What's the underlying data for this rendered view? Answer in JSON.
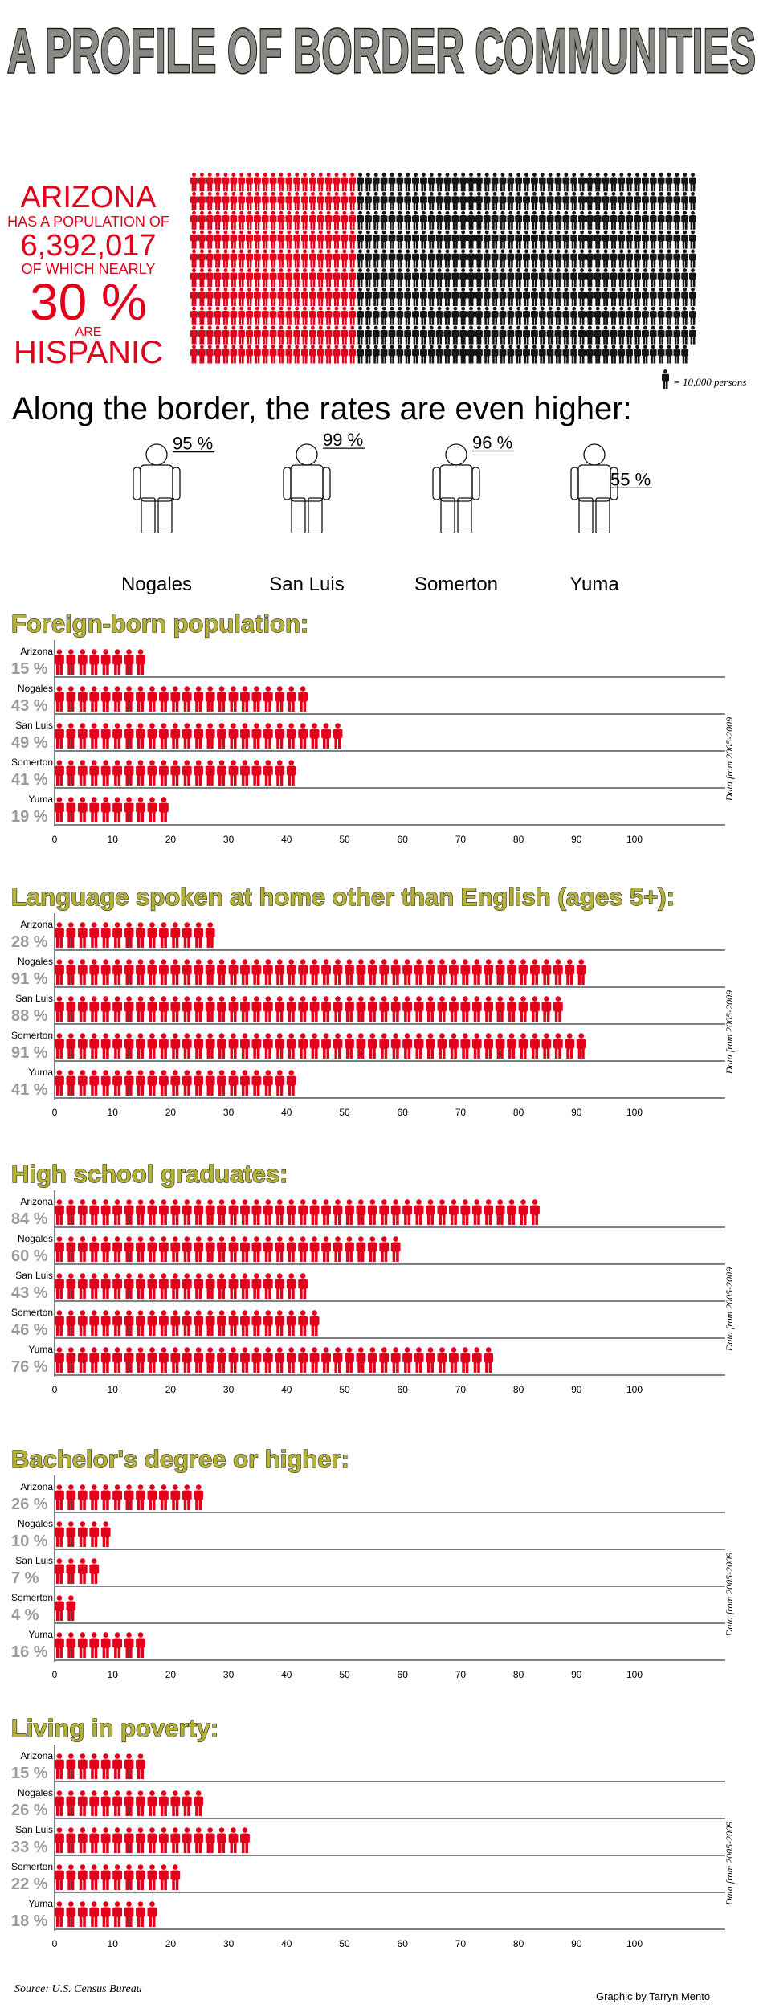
{
  "header": {
    "title": "A PROFILE OF BORDER COMMUNITIES"
  },
  "arizona": {
    "line1": "ARIZONA",
    "line2": "HAS A POPULATION OF",
    "line3": "6,392,017",
    "line4": "OF WHICH NEARLY",
    "line5": "30 %",
    "line6": "ARE",
    "line7": "HISPANIC",
    "population": 6392017,
    "hispanic_share": 0.3,
    "legend": "= 10,000 persons"
  },
  "border": {
    "heading": "Along the border, the rates are even higher:",
    "cities": [
      {
        "name": "Nogales",
        "pct_label": "95 %",
        "value": 95
      },
      {
        "name": "San Luis",
        "pct_label": "99 %",
        "value": 99
      },
      {
        "name": "Somerton",
        "pct_label": "96 %",
        "value": 96
      },
      {
        "name": "Yuma",
        "pct_label": "55 %",
        "value": 55
      }
    ]
  },
  "side_note": "Data from 2005-2009",
  "colors": {
    "accent": "#e3001b",
    "dark": "#141414",
    "title_fill": "#8a8a84",
    "heading_olive": "#b5b235",
    "pct_gray": "#9a9a9a"
  },
  "chart_data": [
    {
      "type": "bar",
      "title": "Foreign-born population:",
      "categories": [
        "Arizona",
        "Nogales",
        "San Luis",
        "Somerton",
        "Yuma"
      ],
      "values": [
        15,
        43,
        49,
        41,
        19
      ],
      "value_labels": [
        "15 %",
        "43 %",
        "49 %",
        "41 %",
        "19 %"
      ],
      "xlim": [
        0,
        100
      ],
      "ticks": [
        "0",
        "10",
        "20",
        "30",
        "40",
        "50",
        "60",
        "70",
        "80",
        "90",
        "100"
      ]
    },
    {
      "type": "bar",
      "title": "Language spoken at home other than English (ages 5+):",
      "categories": [
        "Arizona",
        "Nogales",
        "San Luis",
        "Somerton",
        "Yuma"
      ],
      "values": [
        28,
        91,
        88,
        91,
        41
      ],
      "value_labels": [
        "28 %",
        "91 %",
        "88 %",
        "91 %",
        "41 %"
      ],
      "xlim": [
        0,
        100
      ],
      "ticks": [
        "0",
        "10",
        "20",
        "30",
        "40",
        "50",
        "60",
        "70",
        "80",
        "90",
        "100"
      ]
    },
    {
      "type": "bar",
      "title": "High school graduates:",
      "categories": [
        "Arizona",
        "Nogales",
        "San Luis",
        "Somerton",
        "Yuma"
      ],
      "values": [
        84,
        60,
        43,
        46,
        76
      ],
      "value_labels": [
        "84 %",
        "60 %",
        "43 %",
        "46 %",
        "76 %"
      ],
      "xlim": [
        0,
        100
      ],
      "ticks": [
        "0",
        "10",
        "20",
        "30",
        "40",
        "50",
        "60",
        "70",
        "80",
        "90",
        "100"
      ]
    },
    {
      "type": "bar",
      "title": "Bachelor's degree or higher:",
      "categories": [
        "Arizona",
        "Nogales",
        "San Luis",
        "Somerton",
        "Yuma"
      ],
      "values": [
        26,
        10,
        7,
        4,
        16
      ],
      "value_labels": [
        "26 %",
        "10 %",
        "7 %",
        "4 %",
        "16 %"
      ],
      "xlim": [
        0,
        100
      ],
      "ticks": [
        "0",
        "10",
        "20",
        "30",
        "40",
        "50",
        "60",
        "70",
        "80",
        "90",
        "100"
      ]
    },
    {
      "type": "bar",
      "title": "Living in poverty:",
      "categories": [
        "Arizona",
        "Nogales",
        "San Luis",
        "Somerton",
        "Yuma"
      ],
      "values": [
        15,
        26,
        33,
        22,
        18
      ],
      "value_labels": [
        "15 %",
        "26 %",
        "33 %",
        "22 %",
        "18 %"
      ],
      "xlim": [
        0,
        100
      ],
      "ticks": [
        "0",
        "10",
        "20",
        "30",
        "40",
        "50",
        "60",
        "70",
        "80",
        "90",
        "100"
      ]
    }
  ],
  "footer": {
    "source": "Source:  U.S. Census Bureau",
    "credit": "Graphic by Tarryn Mento"
  }
}
